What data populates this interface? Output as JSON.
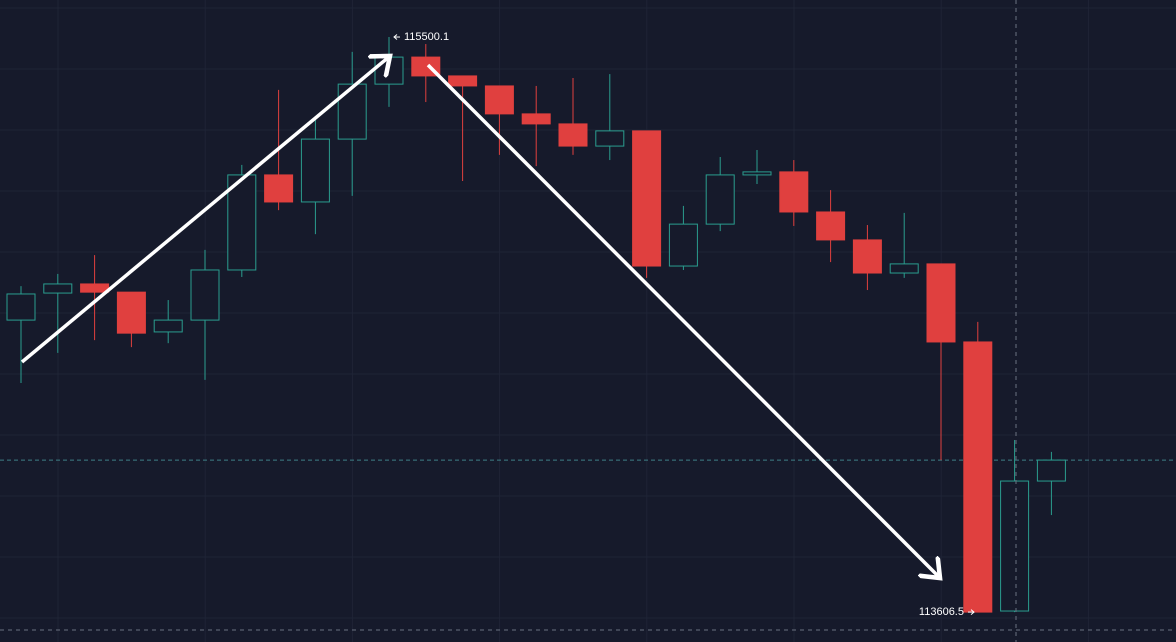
{
  "chart_data": {
    "type": "candlestick",
    "open": [
      114568,
      114657,
      114687,
      114660,
      114529,
      114568,
      114733,
      115046,
      114957,
      115164,
      115345,
      115434,
      115372,
      115339,
      115247,
      115214,
      115141,
      115191,
      114746,
      114884,
      115046,
      115056,
      114924,
      114832,
      114723,
      114753,
      114496,
      113610,
      114038
    ],
    "high": [
      114680,
      114720,
      114782,
      114660,
      114634,
      114799,
      115079,
      115326,
      115227,
      115451,
      115500.1,
      115477,
      115372,
      115339,
      115339,
      115365,
      115378,
      115191,
      114944,
      115105,
      115128,
      115095,
      114996,
      114881,
      114921,
      114753,
      114562,
      114173,
      114134
    ],
    "low": [
      114361,
      114460,
      114502,
      114479,
      114492,
      114371,
      114710,
      114930,
      114851,
      114977,
      115270,
      115286,
      115026,
      115112,
      115075,
      115112,
      115095,
      114707,
      114733,
      114861,
      115016,
      114878,
      114759,
      114667,
      114707,
      114107,
      113606.5,
      113606.5,
      113926
    ],
    "close": [
      114654,
      114687,
      114660,
      114525,
      114568,
      114733,
      115046,
      114957,
      115164,
      115345,
      115434,
      115372,
      115339,
      115247,
      115214,
      115141,
      115191,
      114746,
      114884,
      115046,
      115056,
      114924,
      114832,
      114723,
      114753,
      114496,
      113606.5,
      114038,
      114107
    ],
    "up_color": "#2a9d8f",
    "down_color": "#e0403f",
    "last_price": 114107,
    "ylim": [
      113508,
      115622
    ],
    "grid": true
  }
}
